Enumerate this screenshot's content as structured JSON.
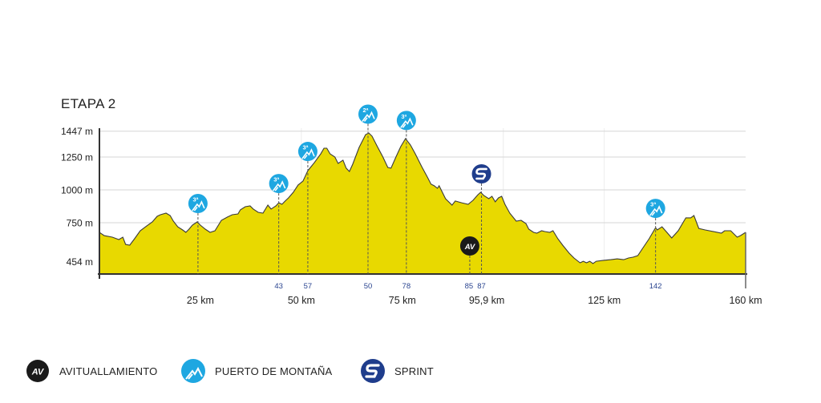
{
  "chart_data": {
    "type": "area",
    "title": "ETAPA 2",
    "xlabel": "",
    "ylabel": "",
    "xlim": [
      0,
      160
    ],
    "ylim": [
      360,
      1447
    ],
    "y_ticks": [
      {
        "value": 1447,
        "label": "1447 m"
      },
      {
        "value": 1250,
        "label": "1250 m"
      },
      {
        "value": 1000,
        "label": "1000 m"
      },
      {
        "value": 750,
        "label": "750 m"
      },
      {
        "value": 454,
        "label": "454 m"
      }
    ],
    "x_ticks": [
      {
        "value": 25,
        "label": "25 km"
      },
      {
        "value": 50,
        "label": "50 km"
      },
      {
        "value": 75,
        "label": "75 km"
      },
      {
        "value": 95.9,
        "label": "95,9 km"
      },
      {
        "value": 125,
        "label": "125 km"
      },
      {
        "value": 160,
        "label": "160 km"
      }
    ],
    "grid": true,
    "fill_color": "#e8d900",
    "line_color": "#3a3a3a",
    "profile": [
      [
        0,
        677
      ],
      [
        1.2,
        652
      ],
      [
        3.2,
        640
      ],
      [
        4.8,
        622
      ],
      [
        5.8,
        640
      ],
      [
        6.5,
        585
      ],
      [
        7.5,
        579
      ],
      [
        8.7,
        628
      ],
      [
        10.1,
        689
      ],
      [
        11.7,
        725
      ],
      [
        13.1,
        756
      ],
      [
        14.3,
        799
      ],
      [
        15.1,
        811
      ],
      [
        16.5,
        823
      ],
      [
        17.5,
        805
      ],
      [
        18.3,
        762
      ],
      [
        19.4,
        719
      ],
      [
        20.6,
        695
      ],
      [
        21.4,
        677
      ],
      [
        22.2,
        701
      ],
      [
        23,
        732
      ],
      [
        24.2,
        756
      ],
      [
        25,
        732
      ],
      [
        26.2,
        701
      ],
      [
        27.4,
        677
      ],
      [
        28.6,
        689
      ],
      [
        30.2,
        768
      ],
      [
        31.7,
        793
      ],
      [
        32.9,
        811
      ],
      [
        34.3,
        817
      ],
      [
        34.9,
        848
      ],
      [
        36.1,
        872
      ],
      [
        37.3,
        878
      ],
      [
        38.1,
        854
      ],
      [
        39.3,
        829
      ],
      [
        40.5,
        823
      ],
      [
        41.7,
        884
      ],
      [
        42.5,
        854
      ],
      [
        43.7,
        878
      ],
      [
        44.4,
        902
      ],
      [
        45.2,
        890
      ],
      [
        46,
        915
      ],
      [
        46.8,
        939
      ],
      [
        48,
        982
      ],
      [
        49.2,
        1037
      ],
      [
        50.4,
        1067
      ],
      [
        51.6,
        1146
      ],
      [
        53.2,
        1207
      ],
      [
        54.8,
        1275
      ],
      [
        55.6,
        1317
      ],
      [
        56.3,
        1317
      ],
      [
        57.1,
        1275
      ],
      [
        58.3,
        1250
      ],
      [
        59.1,
        1201
      ],
      [
        60.3,
        1226
      ],
      [
        61.1,
        1165
      ],
      [
        61.9,
        1140
      ],
      [
        62.7,
        1195
      ],
      [
        64.3,
        1323
      ],
      [
        65.9,
        1421
      ],
      [
        66.7,
        1433
      ],
      [
        67.5,
        1409
      ],
      [
        68.7,
        1336
      ],
      [
        70.2,
        1250
      ],
      [
        71.4,
        1171
      ],
      [
        72.2,
        1165
      ],
      [
        73.4,
        1250
      ],
      [
        74.6,
        1329
      ],
      [
        75.8,
        1390
      ],
      [
        77,
        1342
      ],
      [
        78.2,
        1275
      ],
      [
        79.8,
        1177
      ],
      [
        81.3,
        1092
      ],
      [
        82.1,
        1043
      ],
      [
        82.9,
        1031
      ],
      [
        83.7,
        1012
      ],
      [
        84.1,
        1031
      ],
      [
        85.7,
        933
      ],
      [
        87.3,
        884
      ],
      [
        88.1,
        915
      ],
      [
        89.7,
        902
      ],
      [
        91.3,
        890
      ],
      [
        92.5,
        921
      ],
      [
        93.7,
        963
      ],
      [
        94.4,
        982
      ],
      [
        95.2,
        957
      ],
      [
        96.4,
        933
      ],
      [
        97.2,
        951
      ],
      [
        98,
        909
      ],
      [
        98.8,
        939
      ],
      [
        99.6,
        951
      ],
      [
        100.4,
        890
      ],
      [
        101.6,
        823
      ],
      [
        103.2,
        762
      ],
      [
        104.4,
        768
      ],
      [
        105.6,
        744
      ],
      [
        106.3,
        701
      ],
      [
        107.5,
        677
      ],
      [
        108.3,
        671
      ],
      [
        109.5,
        689
      ],
      [
        110.3,
        683
      ],
      [
        111.5,
        677
      ],
      [
        112.3,
        689
      ],
      [
        113.5,
        628
      ],
      [
        114.7,
        579
      ],
      [
        116.3,
        518
      ],
      [
        117.5,
        482
      ],
      [
        119,
        445
      ],
      [
        119.8,
        457
      ],
      [
        120.6,
        445
      ],
      [
        121.4,
        457
      ],
      [
        122.2,
        439
      ],
      [
        123,
        457
      ],
      [
        124.6,
        463
      ],
      [
        126.6,
        469
      ],
      [
        128.2,
        475
      ],
      [
        129.8,
        469
      ],
      [
        131,
        482
      ],
      [
        132.1,
        488
      ],
      [
        133.3,
        500
      ],
      [
        134.5,
        555
      ],
      [
        136.1,
        628
      ],
      [
        137.7,
        713
      ],
      [
        138.1,
        695
      ],
      [
        139.3,
        719
      ],
      [
        140.5,
        677
      ],
      [
        141.7,
        634
      ],
      [
        143.3,
        689
      ],
      [
        145.2,
        787
      ],
      [
        146.4,
        787
      ],
      [
        147.2,
        805
      ],
      [
        148.4,
        707
      ],
      [
        150,
        695
      ],
      [
        154,
        671
      ],
      [
        154.8,
        689
      ],
      [
        156.3,
        689
      ],
      [
        157.9,
        640
      ],
      [
        158.7,
        652
      ],
      [
        160,
        677
      ]
    ],
    "markers": [
      {
        "km": 24.4,
        "type": "climb",
        "category": "3ª",
        "label": ""
      },
      {
        "km": 44.4,
        "type": "climb",
        "category": "3ª",
        "label": "43"
      },
      {
        "km": 51.6,
        "type": "climb",
        "category": "3ª",
        "label": "57"
      },
      {
        "km": 66.5,
        "type": "climb",
        "category": "2ª",
        "label": "50"
      },
      {
        "km": 76.0,
        "type": "climb",
        "category": "3ª",
        "label": "78"
      },
      {
        "km": 91.7,
        "type": "feed",
        "category": "AV",
        "label": "85"
      },
      {
        "km": 94.6,
        "type": "sprint",
        "category": "",
        "label": "87"
      },
      {
        "km": 137.7,
        "type": "climb",
        "category": "3ª",
        "label": "142"
      }
    ]
  },
  "colors": {
    "climb": "#1ea7e1",
    "sprint": "#1f3d8c",
    "feed": "#1a1a1a",
    "marker_label": "#2b4590"
  },
  "legend": [
    {
      "icon": "feed-station-icon",
      "text": "AV",
      "label": "AVITUALLAMIENTO"
    },
    {
      "icon": "mountain-pass-icon",
      "label": "PUERTO DE MONTAÑA"
    },
    {
      "icon": "sprint-icon",
      "label": "SPRINT"
    }
  ]
}
